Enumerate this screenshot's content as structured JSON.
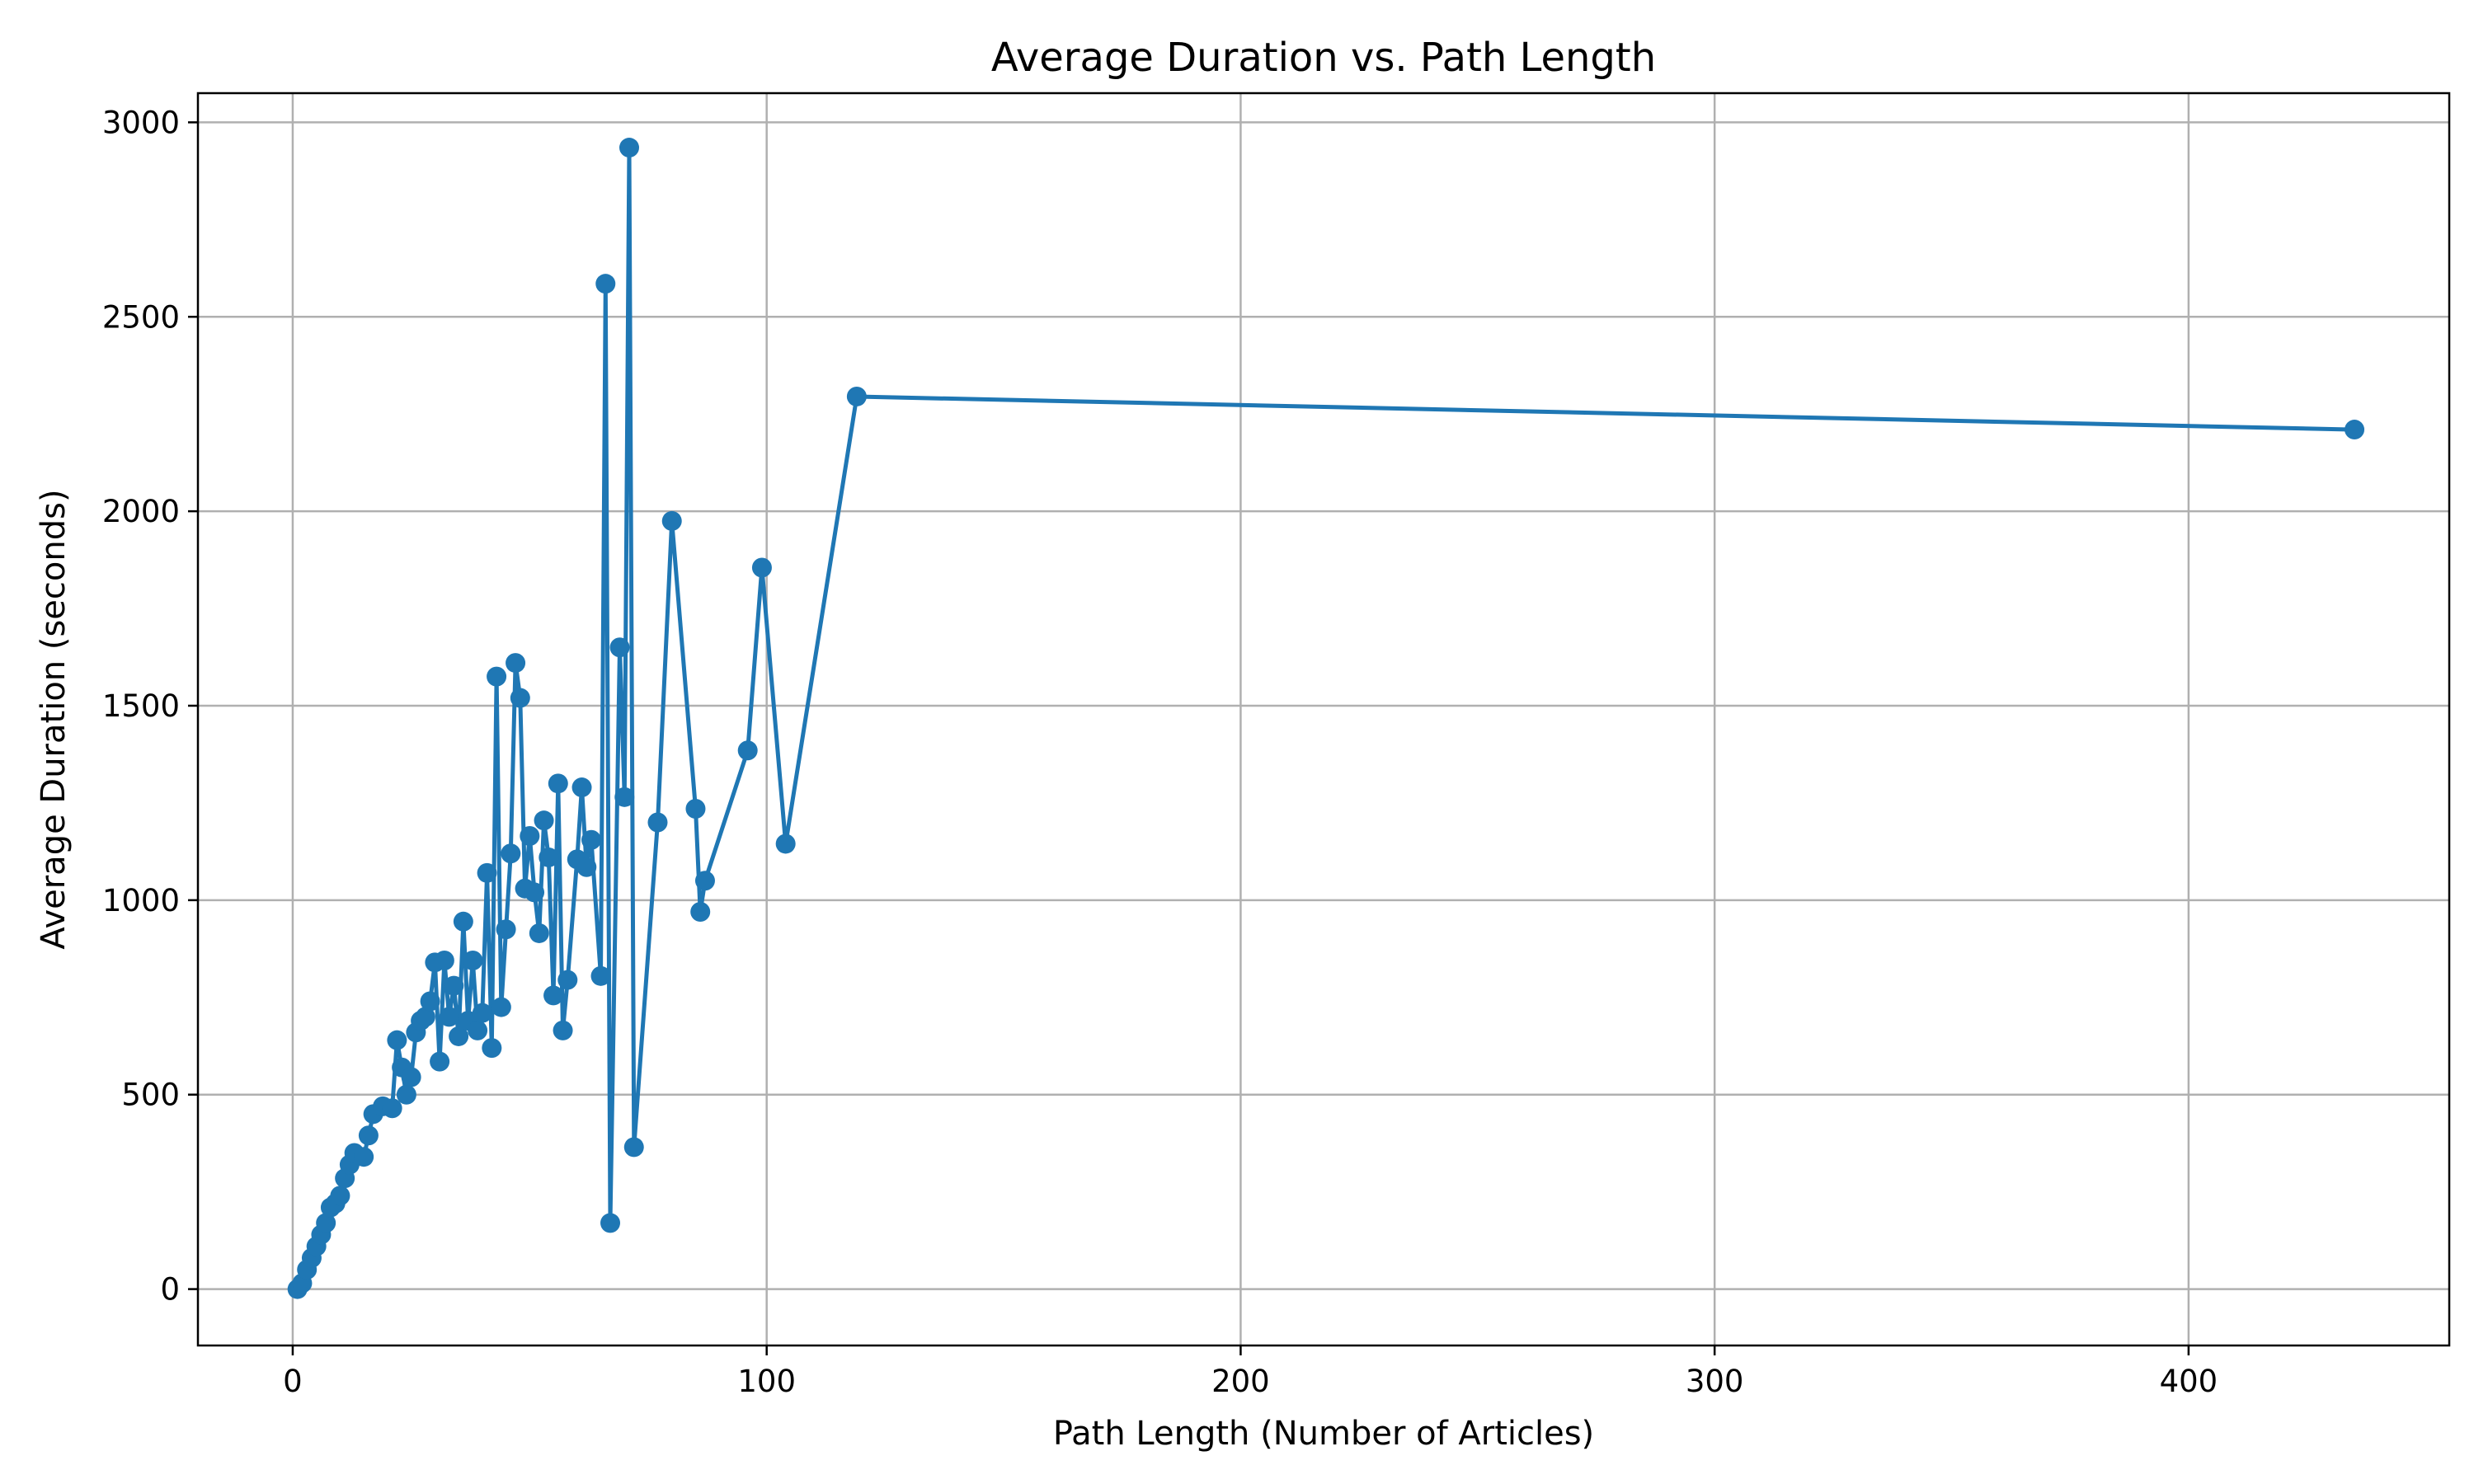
{
  "chart_data": {
    "type": "line",
    "title": "Average Duration vs. Path Length",
    "xlabel": "Path Length (Number of Articles)",
    "ylabel": "Average Duration (seconds)",
    "xlim": [
      -20,
      455
    ],
    "ylim": [
      -145,
      3075
    ],
    "xticks": [
      0,
      100,
      200,
      300,
      400
    ],
    "yticks": [
      0,
      500,
      1000,
      1500,
      2000,
      2500,
      3000
    ],
    "grid": true,
    "marker": "circle",
    "color": "#1f77b4",
    "series": [
      {
        "x": [
          1,
          2,
          3,
          4,
          5,
          6,
          7,
          8,
          9,
          10,
          11,
          12,
          13,
          15,
          16,
          17,
          19,
          21,
          22,
          23,
          24,
          25,
          26,
          27,
          28,
          29,
          30,
          31,
          32,
          33,
          34,
          35,
          36,
          37,
          38,
          39,
          40,
          41,
          42,
          43,
          44,
          45,
          46,
          47,
          48,
          49,
          50,
          51,
          52,
          53,
          54,
          55,
          56,
          57,
          58,
          60,
          61,
          62,
          63,
          65,
          66,
          67,
          69,
          70,
          71,
          72,
          77,
          80,
          85,
          86,
          87,
          96,
          99,
          104,
          119,
          435
        ],
        "y": [
          0,
          15,
          50,
          80,
          110,
          140,
          170,
          210,
          220,
          240,
          285,
          320,
          350,
          340,
          395,
          450,
          470,
          465,
          640,
          570,
          500,
          545,
          660,
          690,
          700,
          740,
          840,
          585,
          845,
          700,
          780,
          650,
          945,
          690,
          845,
          665,
          710,
          1070,
          620,
          1575,
          725,
          925,
          1120,
          1610,
          1520,
          1030,
          1165,
          1020,
          915,
          1205,
          1110,
          755,
          1300,
          665,
          795,
          1105,
          1290,
          1085,
          1155,
          805,
          2585,
          170,
          1650,
          1265,
          2935,
          365,
          1200,
          1975,
          1235,
          970,
          1050,
          1385,
          1855,
          1145,
          2295,
          2210
        ]
      }
    ]
  }
}
